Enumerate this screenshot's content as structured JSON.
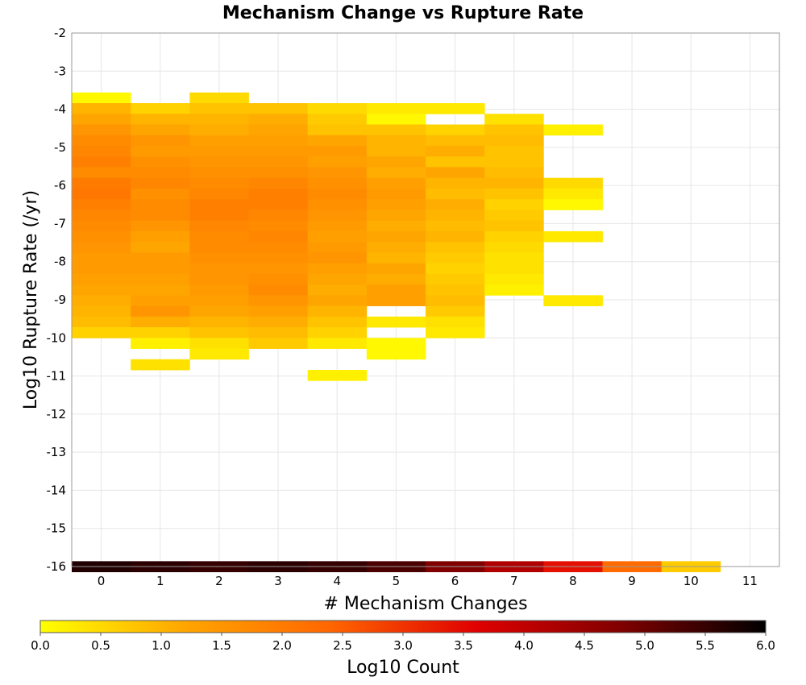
{
  "chart_data": {
    "type": "heatmap",
    "title": "Mechanism Change vs Rupture Rate",
    "xlabel": "# Mechanism Changes",
    "ylabel": "Log10 Rupture Rate (/yr)",
    "xlim": [
      -0.5,
      11.5
    ],
    "ylim": [
      -16,
      -2
    ],
    "x_ticks": [
      "0",
      "1",
      "2",
      "3",
      "4",
      "5",
      "6",
      "7",
      "8",
      "9",
      "10",
      "11"
    ],
    "y_ticks": [
      "-2",
      "-3",
      "-4",
      "-5",
      "-6",
      "-7",
      "-8",
      "-9",
      "-10",
      "-11",
      "-12",
      "-13",
      "-14",
      "-15",
      "-16"
    ],
    "grid": true,
    "y_bin_width": 0.28,
    "colorbar": {
      "label": "Log10 Count",
      "range": [
        0,
        6
      ],
      "ticks": [
        "0.0",
        "0.5",
        "1.0",
        "1.5",
        "2.0",
        "2.5",
        "3.0",
        "3.5",
        "4.0",
        "4.5",
        "5.0",
        "5.5",
        "6.0"
      ],
      "colors": [
        "#ffff00",
        "#ffa500",
        "#ff6600",
        "#e00000",
        "#800000",
        "#000000"
      ]
    },
    "columns": [
      {
        "x": 0,
        "y_top": -3.56,
        "values": [
          0.1,
          1.0,
          1.2,
          1.5,
          1.7,
          1.8,
          1.9,
          1.7,
          2.0,
          2.1,
          1.9,
          1.8,
          1.7,
          1.6,
          1.5,
          1.4,
          1.4,
          1.3,
          1.2,
          1.1,
          1.0,
          0.9,
          0.6
        ]
      },
      {
        "x": 1,
        "y_top": -3.84,
        "values": [
          0.6,
          1.0,
          1.2,
          1.5,
          1.4,
          1.6,
          1.7,
          1.8,
          1.6,
          1.7,
          1.7,
          1.5,
          1.3,
          1.2,
          1.4,
          1.4,
          1.3,
          1.2,
          1.3,
          1.5,
          1.1,
          0.6,
          0.2,
          null,
          0.4
        ]
      },
      {
        "x": 2,
        "y_top": -3.56,
        "values": [
          0.5,
          0.8,
          1.0,
          1.1,
          1.3,
          1.4,
          1.5,
          1.6,
          1.7,
          1.8,
          1.9,
          1.9,
          1.8,
          1.7,
          1.7,
          1.6,
          1.5,
          1.5,
          1.4,
          1.3,
          1.2,
          1.0,
          0.8,
          0.4,
          0.3
        ]
      },
      {
        "x": 3,
        "y_top": -3.84,
        "values": [
          0.8,
          1.1,
          1.2,
          1.3,
          1.4,
          1.5,
          1.6,
          1.8,
          1.9,
          1.9,
          1.8,
          1.7,
          1.8,
          1.7,
          1.6,
          1.5,
          1.6,
          1.7,
          1.5,
          1.3,
          1.1,
          0.9,
          0.7
        ]
      },
      {
        "x": 4,
        "y_top": -3.84,
        "values": [
          0.5,
          0.7,
          0.8,
          1.2,
          1.4,
          1.3,
          1.5,
          1.6,
          1.7,
          1.6,
          1.5,
          1.4,
          1.3,
          1.4,
          1.5,
          1.3,
          1.2,
          1.1,
          1.2,
          1.0,
          0.8,
          0.6,
          0.3,
          null,
          null,
          0.2
        ]
      },
      {
        "x": 5,
        "y_top": -3.84,
        "values": [
          0.3,
          0.1,
          0.8,
          1.0,
          1.0,
          1.2,
          1.1,
          1.3,
          1.4,
          1.3,
          1.2,
          1.1,
          1.2,
          1.1,
          1.0,
          1.2,
          1.1,
          1.3,
          1.3,
          null,
          0.3,
          null,
          0.1,
          0.1
        ]
      },
      {
        "x": 6,
        "y_top": -3.84,
        "values": [
          0.3,
          null,
          0.6,
          0.9,
          1.1,
          0.8,
          1.2,
          1.0,
          0.9,
          1.1,
          1.0,
          0.9,
          1.0,
          0.8,
          0.7,
          0.6,
          0.7,
          0.8,
          0.9,
          0.7,
          0.4,
          0.3
        ]
      },
      {
        "x": 7,
        "y_top": -4.12,
        "values": [
          0.4,
          0.8,
          0.9,
          0.8,
          0.8,
          0.9,
          1.0,
          0.8,
          0.6,
          0.7,
          0.8,
          0.6,
          0.5,
          0.4,
          0.4,
          0.3,
          0.2
        ]
      },
      {
        "x": 8,
        "y_top": -4.4,
        "values": [
          0.2,
          null,
          null,
          null,
          null,
          0.5,
          0.3,
          0.1,
          null,
          null,
          0.3,
          null,
          null,
          null,
          null,
          null,
          0.3
        ]
      },
      {
        "x": 0,
        "y_top": -15.86,
        "values": [
          5.7
        ]
      },
      {
        "x": 1,
        "y_top": -15.86,
        "values": [
          5.6
        ]
      },
      {
        "x": 2,
        "y_top": -15.86,
        "values": [
          5.5
        ]
      },
      {
        "x": 3,
        "y_top": -15.86,
        "values": [
          5.6
        ]
      },
      {
        "x": 4,
        "y_top": -15.86,
        "values": [
          5.5
        ]
      },
      {
        "x": 5,
        "y_top": -15.86,
        "values": [
          5.3
        ]
      },
      {
        "x": 6,
        "y_top": -15.86,
        "values": [
          4.8
        ]
      },
      {
        "x": 7,
        "y_top": -15.86,
        "values": [
          4.2
        ]
      },
      {
        "x": 8,
        "y_top": -15.86,
        "values": [
          3.4
        ]
      },
      {
        "x": 9,
        "y_top": -15.86,
        "values": [
          2.3
        ]
      },
      {
        "x": 10,
        "y_top": -15.86,
        "values": [
          0.7
        ]
      }
    ]
  }
}
